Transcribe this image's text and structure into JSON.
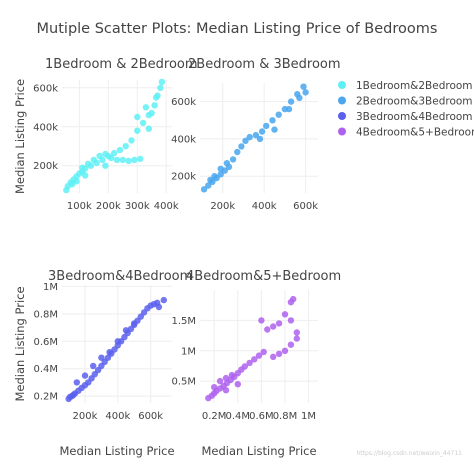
{
  "figure": {
    "title": "Mutiple Scatter Plots: Median Listing Price of Bedrooms",
    "watermark": "https://blog.csdn.net/weixin_44711"
  },
  "legend": [
    {
      "label": "1Bedroom&2Bedroom",
      "color": "#5ff0f5"
    },
    {
      "label": "2Bedroom&3Bedroom",
      "color": "#49a6ef"
    },
    {
      "label": "3Bedroom&4Bedroom",
      "color": "#5b60ed"
    },
    {
      "label": "4Bedroom&5+Bedroom",
      "color": "#ae60ef"
    }
  ],
  "chart_data": [
    {
      "type": "scatter",
      "title": "1Bedroom & 2Bedroom",
      "xlabel": "",
      "ylabel": "Median Listing Price",
      "xlim": [
        40000,
        420000
      ],
      "ylim": [
        60000,
        640000
      ],
      "xticks": [
        "100k",
        "200k",
        "300k",
        "400k"
      ],
      "xtick_values": [
        100000,
        200000,
        300000,
        400000
      ],
      "yticks": [
        "200k",
        "400k",
        "600k"
      ],
      "ytick_values": [
        200000,
        400000,
        600000
      ],
      "series": [
        {
          "name": "1Bedroom&2Bedroom",
          "color": "#5ff0f5",
          "points": [
            [
              55000,
              75000
            ],
            [
              60000,
              95000
            ],
            [
              70000,
              115000
            ],
            [
              80000,
              130000
            ],
            [
              90000,
              145000
            ],
            [
              100000,
              160000
            ],
            [
              110000,
              170000
            ],
            [
              120000,
              185000
            ],
            [
              140000,
              200000
            ],
            [
              160000,
              215000
            ],
            [
              180000,
              230000
            ],
            [
              200000,
              250000
            ],
            [
              220000,
              265000
            ],
            [
              240000,
              280000
            ],
            [
              260000,
              300000
            ],
            [
              280000,
              330000
            ],
            [
              300000,
              380000
            ],
            [
              320000,
              420000
            ],
            [
              340000,
              460000
            ],
            [
              360000,
              510000
            ],
            [
              370000,
              560000
            ],
            [
              380000,
              600000
            ],
            [
              385000,
              630000
            ],
            [
              90000,
              120000
            ],
            [
              110000,
              190000
            ],
            [
              130000,
              210000
            ],
            [
              150000,
              230000
            ],
            [
              170000,
              250000
            ],
            [
              190000,
              260000
            ],
            [
              210000,
              240000
            ],
            [
              230000,
              230000
            ],
            [
              250000,
              230000
            ],
            [
              270000,
              225000
            ],
            [
              290000,
              230000
            ],
            [
              310000,
              235000
            ],
            [
              300000,
              450000
            ],
            [
              330000,
              500000
            ],
            [
              350000,
              470000
            ],
            [
              365000,
              550000
            ],
            [
              190000,
              200000
            ],
            [
              120000,
              150000
            ],
            [
              75000,
              105000
            ],
            [
              340000,
              390000
            ]
          ]
        }
      ]
    },
    {
      "type": "scatter",
      "title": "2Bedroom & 3Bedroom",
      "xlabel": "",
      "ylabel": "",
      "xlim": [
        90000,
        660000
      ],
      "ylim": [
        110000,
        700000
      ],
      "xticks": [
        "200k",
        "400k",
        "600k"
      ],
      "xtick_values": [
        200000,
        400000,
        600000
      ],
      "yticks": [
        "200k",
        "400k",
        "600k"
      ],
      "ytick_values": [
        200000,
        400000,
        600000
      ],
      "series": [
        {
          "name": "2Bedroom&3Bedroom",
          "color": "#49a6ef",
          "points": [
            [
              110000,
              130000
            ],
            [
              130000,
              150000
            ],
            [
              150000,
              170000
            ],
            [
              170000,
              190000
            ],
            [
              190000,
              210000
            ],
            [
              210000,
              230000
            ],
            [
              230000,
              250000
            ],
            [
              250000,
              290000
            ],
            [
              270000,
              330000
            ],
            [
              290000,
              360000
            ],
            [
              310000,
              390000
            ],
            [
              330000,
              410000
            ],
            [
              360000,
              420000
            ],
            [
              390000,
              440000
            ],
            [
              410000,
              470000
            ],
            [
              440000,
              500000
            ],
            [
              470000,
              530000
            ],
            [
              500000,
              560000
            ],
            [
              530000,
              600000
            ],
            [
              560000,
              640000
            ],
            [
              590000,
              680000
            ],
            [
              600000,
              650000
            ],
            [
              570000,
              620000
            ],
            [
              520000,
              560000
            ],
            [
              450000,
              450000
            ],
            [
              380000,
              400000
            ],
            [
              160000,
              200000
            ],
            [
              140000,
              180000
            ],
            [
              190000,
              240000
            ],
            [
              220000,
              270000
            ]
          ]
        }
      ]
    },
    {
      "type": "scatter",
      "title": "3Bedroom&4Bedroom",
      "xlabel": "Median Listing Price",
      "ylabel": "Median Listing Price",
      "xlim": [
        60000,
        730000
      ],
      "ylim": [
        150000,
        1010000
      ],
      "xticks": [
        "200k",
        "400k",
        "600k"
      ],
      "xtick_values": [
        200000,
        400000,
        600000
      ],
      "yticks": [
        "0.2M",
        "0.4M",
        "0.6M",
        "0.8M",
        "1M"
      ],
      "ytick_values": [
        200000,
        400000,
        600000,
        800000,
        1000000
      ],
      "series": [
        {
          "name": "3Bedroom&4Bedroom",
          "color": "#5b60ed",
          "points": [
            [
              100000,
              180000
            ],
            [
              120000,
              200000
            ],
            [
              140000,
              220000
            ],
            [
              160000,
              240000
            ],
            [
              180000,
              260000
            ],
            [
              200000,
              280000
            ],
            [
              220000,
              300000
            ],
            [
              240000,
              330000
            ],
            [
              260000,
              360000
            ],
            [
              280000,
              390000
            ],
            [
              300000,
              420000
            ],
            [
              320000,
              450000
            ],
            [
              340000,
              480000
            ],
            [
              360000,
              510000
            ],
            [
              380000,
              540000
            ],
            [
              400000,
              570000
            ],
            [
              420000,
              600000
            ],
            [
              440000,
              630000
            ],
            [
              460000,
              660000
            ],
            [
              480000,
              690000
            ],
            [
              500000,
              720000
            ],
            [
              520000,
              750000
            ],
            [
              540000,
              780000
            ],
            [
              560000,
              810000
            ],
            [
              580000,
              840000
            ],
            [
              600000,
              860000
            ],
            [
              620000,
              870000
            ],
            [
              640000,
              880000
            ],
            [
              680000,
              900000
            ],
            [
              150000,
              300000
            ],
            [
              200000,
              350000
            ],
            [
              250000,
              420000
            ],
            [
              300000,
              480000
            ],
            [
              350000,
              520000
            ],
            [
              400000,
              600000
            ],
            [
              450000,
              680000
            ],
            [
              500000,
              730000
            ],
            [
              650000,
              850000
            ],
            [
              130000,
              210000
            ],
            [
              110000,
              195000
            ]
          ]
        }
      ]
    },
    {
      "type": "scatter",
      "title": "4Bedroom&5+Bedroom",
      "xlabel": "Median Listing Price",
      "ylabel": "",
      "xlim": [
        80000,
        1080000
      ],
      "ylim": [
        140000,
        2000000
      ],
      "xticks": [
        "0.2M",
        "0.4M",
        "0.6M",
        "0.8M",
        "1M"
      ],
      "xtick_values": [
        200000,
        400000,
        600000,
        800000,
        1000000
      ],
      "yticks": [
        "0.5M",
        "1M",
        "1.5M"
      ],
      "ytick_values": [
        500000,
        1000000,
        1500000
      ],
      "series": [
        {
          "name": "4Bedroom&5+Bedroom",
          "color": "#ae60ef",
          "points": [
            [
              150000,
              220000
            ],
            [
              180000,
              260000
            ],
            [
              200000,
              300000
            ],
            [
              220000,
              340000
            ],
            [
              250000,
              380000
            ],
            [
              280000,
              420000
            ],
            [
              310000,
              470000
            ],
            [
              340000,
              520000
            ],
            [
              370000,
              570000
            ],
            [
              400000,
              630000
            ],
            [
              430000,
              690000
            ],
            [
              460000,
              740000
            ],
            [
              500000,
              800000
            ],
            [
              540000,
              860000
            ],
            [
              580000,
              920000
            ],
            [
              620000,
              980000
            ],
            [
              200000,
              400000
            ],
            [
              250000,
              500000
            ],
            [
              300000,
              550000
            ],
            [
              350000,
              600000
            ],
            [
              300000,
              350000
            ],
            [
              400000,
              450000
            ],
            [
              700000,
              900000
            ],
            [
              750000,
              950000
            ],
            [
              800000,
              1000000
            ],
            [
              850000,
              1100000
            ],
            [
              900000,
              1200000
            ],
            [
              650000,
              1350000
            ],
            [
              700000,
              1400000
            ],
            [
              750000,
              1450000
            ],
            [
              800000,
              1600000
            ],
            [
              850000,
              1800000
            ],
            [
              870000,
              1850000
            ],
            [
              850000,
              1500000
            ],
            [
              900000,
              1300000
            ],
            [
              600000,
              1500000
            ]
          ]
        }
      ]
    }
  ]
}
